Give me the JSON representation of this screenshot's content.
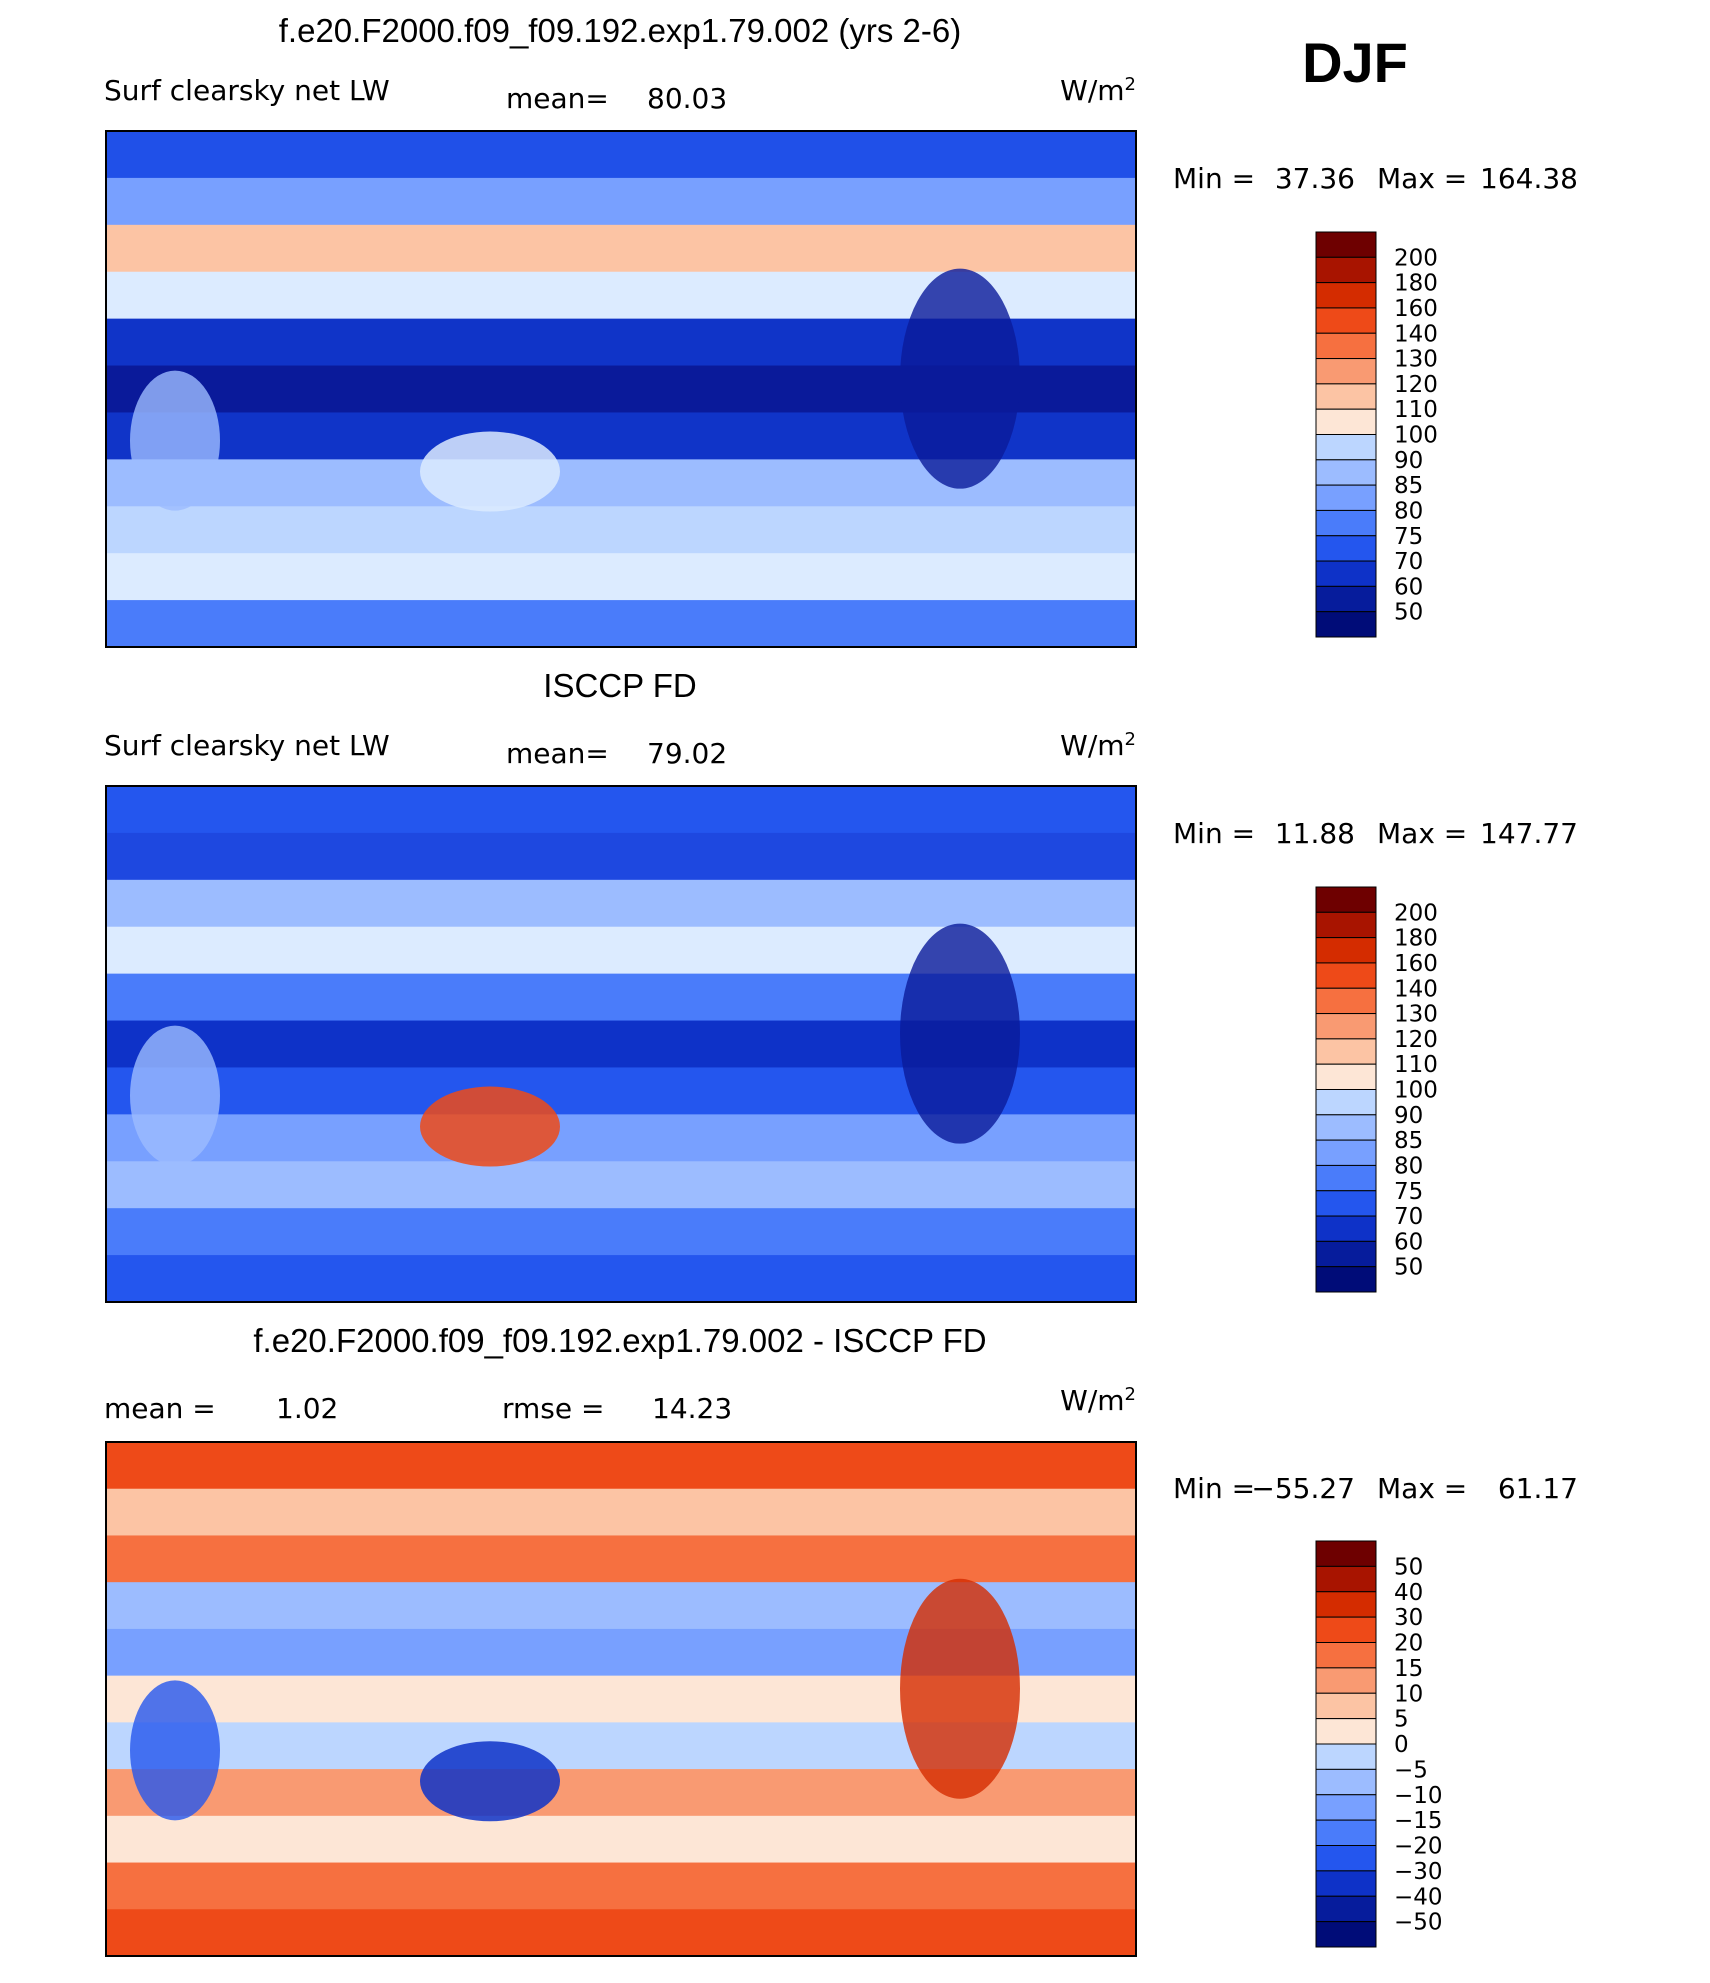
{
  "header": {
    "title": "DJF"
  },
  "panels": [
    {
      "title": "f.e20.F2000.f09_f09.192.exp1.79.002 (yrs 2-6)",
      "left_label": "Surf clearsky net LW",
      "stats": [
        {
          "label": "mean=",
          "value": "80.03"
        }
      ],
      "units_base": "W/m",
      "units_exp": "2",
      "range": {
        "min_label": "Min =",
        "min": "37.36",
        "max_label": "Max =",
        "max": "164.38"
      },
      "colorbar": [
        "200",
        "180",
        "160",
        "140",
        "130",
        "120",
        "110",
        "100",
        "90",
        "85",
        "80",
        "75",
        "70",
        "60",
        "50"
      ]
    },
    {
      "title": "ISCCP FD",
      "left_label": "Surf clearsky net LW",
      "stats": [
        {
          "label": "mean=",
          "value": "79.02"
        }
      ],
      "units_base": "W/m",
      "units_exp": "2",
      "range": {
        "min_label": "Min =",
        "min": "11.88",
        "max_label": "Max =",
        "max": "147.77"
      },
      "colorbar": [
        "200",
        "180",
        "160",
        "140",
        "130",
        "120",
        "110",
        "100",
        "90",
        "85",
        "80",
        "75",
        "70",
        "60",
        "50"
      ]
    },
    {
      "title": "f.e20.F2000.f09_f09.192.exp1.79.002 - ISCCP FD",
      "stats": [
        {
          "label": "mean =",
          "value": "1.02"
        },
        {
          "label": "rmse =",
          "value": "14.23"
        }
      ],
      "units_base": "W/m",
      "units_exp": "2",
      "range": {
        "min_label": "Min =",
        "min": "−55.27",
        "max_label": "Max =",
        "max": "61.17"
      },
      "colorbar": [
        "50",
        "40",
        "30",
        "20",
        "15",
        "10",
        "5",
        "0",
        "−5",
        "−10",
        "−15",
        "−20",
        "−30",
        "−40",
        "−50"
      ]
    }
  ]
}
